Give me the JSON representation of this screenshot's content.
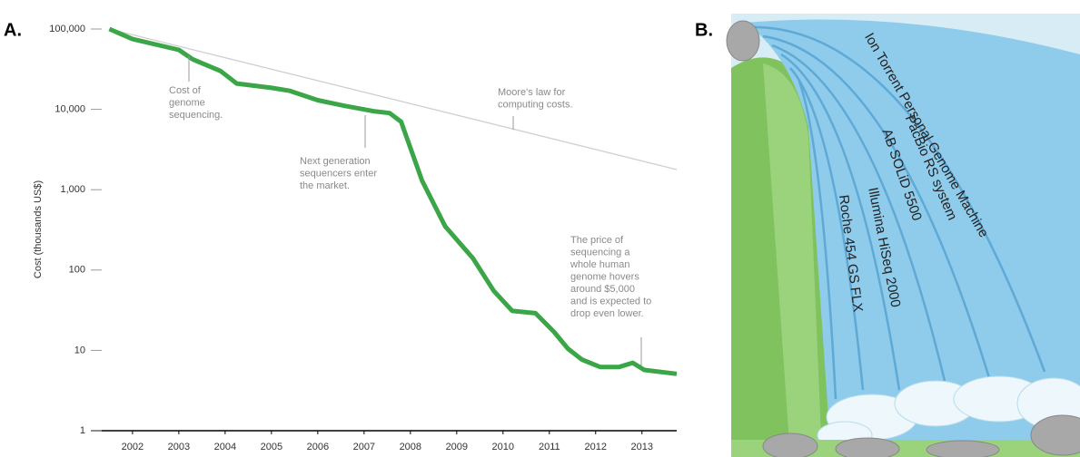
{
  "chart_data": {
    "type": "line",
    "panel_label": "A.",
    "y_label": "Cost (thousands US$)",
    "log_y": true,
    "ylim": [
      1,
      100000
    ],
    "yticks": [
      1,
      10,
      100,
      {
        "value": 1000,
        "label": "1,000"
      },
      {
        "value": 10000,
        "label": "10,000"
      },
      {
        "value": 100000,
        "label": "100,000"
      }
    ],
    "xlim": [
      2001.1,
      2013.75
    ],
    "xticks": [
      2002,
      2003,
      2004,
      2005,
      2006,
      2007,
      2008,
      2009,
      2010,
      2011,
      2012,
      2013
    ],
    "series": [
      {
        "color": "#3aa648",
        "x": [
          2001.5,
          2002.0,
          2003.0,
          2003.3,
          2003.9,
          2004.25,
          2005.0,
          2005.4,
          2006.0,
          2006.6,
          2007.2,
          2007.55,
          2007.8,
          2008.25,
          2008.75,
          2009.35,
          2009.8,
          2010.2,
          2010.7,
          2011.1,
          2011.4,
          2011.7,
          2012.1,
          2012.5,
          2012.8,
          2013.05,
          2013.75
        ],
        "values": [
          100000,
          75000,
          55000,
          42000,
          30000,
          21000,
          18500,
          17000,
          13000,
          11000,
          9500,
          9000,
          7000,
          1300,
          350,
          140,
          55,
          31,
          29,
          17,
          10.5,
          7.7,
          6.2,
          6.2,
          7,
          5.7,
          5.1
        ]
      },
      {
        "color": "#cfcfcf",
        "x": [
          2001.5,
          2013.75
        ],
        "values": [
          100000,
          1780
        ]
      }
    ],
    "annotations": [
      {
        "lines": [
          "Cost of",
          "genome",
          "sequencing."
        ]
      },
      {
        "lines": [
          "Moore's law for",
          "computing costs."
        ]
      },
      {
        "lines": [
          "Next generation",
          "sequencers enter",
          "the market."
        ]
      },
      {
        "lines": [
          "The price of",
          "sequencing a",
          "whole human",
          "genome hovers",
          "around $5,000",
          "and is expected to",
          "drop even lower."
        ]
      }
    ]
  },
  "illustration": {
    "label": "B.",
    "streams": [
      "Ion Torrent Personal Genome Machine",
      "PacBio RS system",
      "AB SOLiD 5500",
      "Illumina HiSeq 2000",
      "Roche 454 GS FLX"
    ]
  }
}
